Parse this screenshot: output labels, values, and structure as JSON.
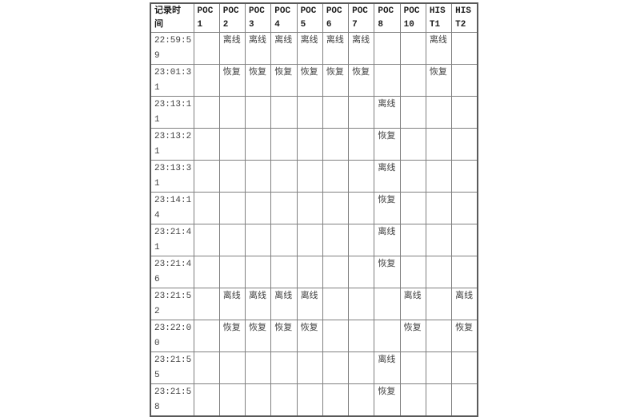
{
  "page": {
    "background": "#ffffff"
  },
  "colors": {
    "header_text": "#1c1c1c",
    "body_text": "#3f3f3f",
    "grid_line": "#808080",
    "outer_border": "#5a5a5a",
    "background": "#ffffff"
  },
  "status_terms": {
    "offline": "离线",
    "restored": "恢复"
  },
  "table": {
    "columns": [
      {
        "key": "time",
        "label": "记录时间"
      },
      {
        "key": "poc1",
        "label": "POC 1"
      },
      {
        "key": "poc2",
        "label": "POC 2"
      },
      {
        "key": "poc3",
        "label": "POC 3"
      },
      {
        "key": "poc4",
        "label": "POC 4"
      },
      {
        "key": "poc5",
        "label": "POC 5"
      },
      {
        "key": "poc6",
        "label": "POC 6"
      },
      {
        "key": "poc7",
        "label": "POC 7"
      },
      {
        "key": "poc8",
        "label": "POC 8"
      },
      {
        "key": "poc10",
        "label": "POC 10"
      },
      {
        "key": "hist1",
        "label": "HIS T1"
      },
      {
        "key": "hist2",
        "label": "HIS T2"
      }
    ],
    "rows": [
      {
        "time": "22:59:59",
        "cells": [
          "",
          "离线",
          "离线",
          "离线",
          "离线",
          "离线",
          "离线",
          "",
          "",
          "离线",
          ""
        ]
      },
      {
        "time": "23:01:31",
        "cells": [
          "",
          "恢复",
          "恢复",
          "恢复",
          "恢复",
          "恢复",
          "恢复",
          "",
          "",
          "恢复",
          ""
        ]
      },
      {
        "time": "23:13:11",
        "cells": [
          "",
          "",
          "",
          "",
          "",
          "",
          "",
          "离线",
          "",
          "",
          ""
        ]
      },
      {
        "time": "23:13:21",
        "cells": [
          "",
          "",
          "",
          "",
          "",
          "",
          "",
          "恢复",
          "",
          "",
          ""
        ]
      },
      {
        "time": "23:13:31",
        "cells": [
          "",
          "",
          "",
          "",
          "",
          "",
          "",
          "离线",
          "",
          "",
          ""
        ]
      },
      {
        "time": "23:14:14",
        "cells": [
          "",
          "",
          "",
          "",
          "",
          "",
          "",
          "恢复",
          "",
          "",
          ""
        ]
      },
      {
        "time": "23:21:41",
        "cells": [
          "",
          "",
          "",
          "",
          "",
          "",
          "",
          "离线",
          "",
          "",
          ""
        ]
      },
      {
        "time": "23:21:46",
        "cells": [
          "",
          "",
          "",
          "",
          "",
          "",
          "",
          "恢复",
          "",
          "",
          ""
        ]
      },
      {
        "time": "23:21:52",
        "cells": [
          "",
          "离线",
          "离线",
          "离线",
          "离线",
          "",
          "",
          "",
          "离线",
          "",
          "离线"
        ]
      },
      {
        "time": "23:22:00",
        "cells": [
          "",
          "恢复",
          "恢复",
          "恢复",
          "恢复",
          "",
          "",
          "",
          "恢复",
          "",
          "恢复"
        ]
      },
      {
        "time": "23:21:55",
        "cells": [
          "",
          "",
          "",
          "",
          "",
          "",
          "",
          "离线",
          "",
          "",
          ""
        ]
      },
      {
        "time": "23:21:58",
        "cells": [
          "",
          "",
          "",
          "",
          "",
          "",
          "",
          "恢复",
          "",
          "",
          ""
        ]
      }
    ]
  }
}
